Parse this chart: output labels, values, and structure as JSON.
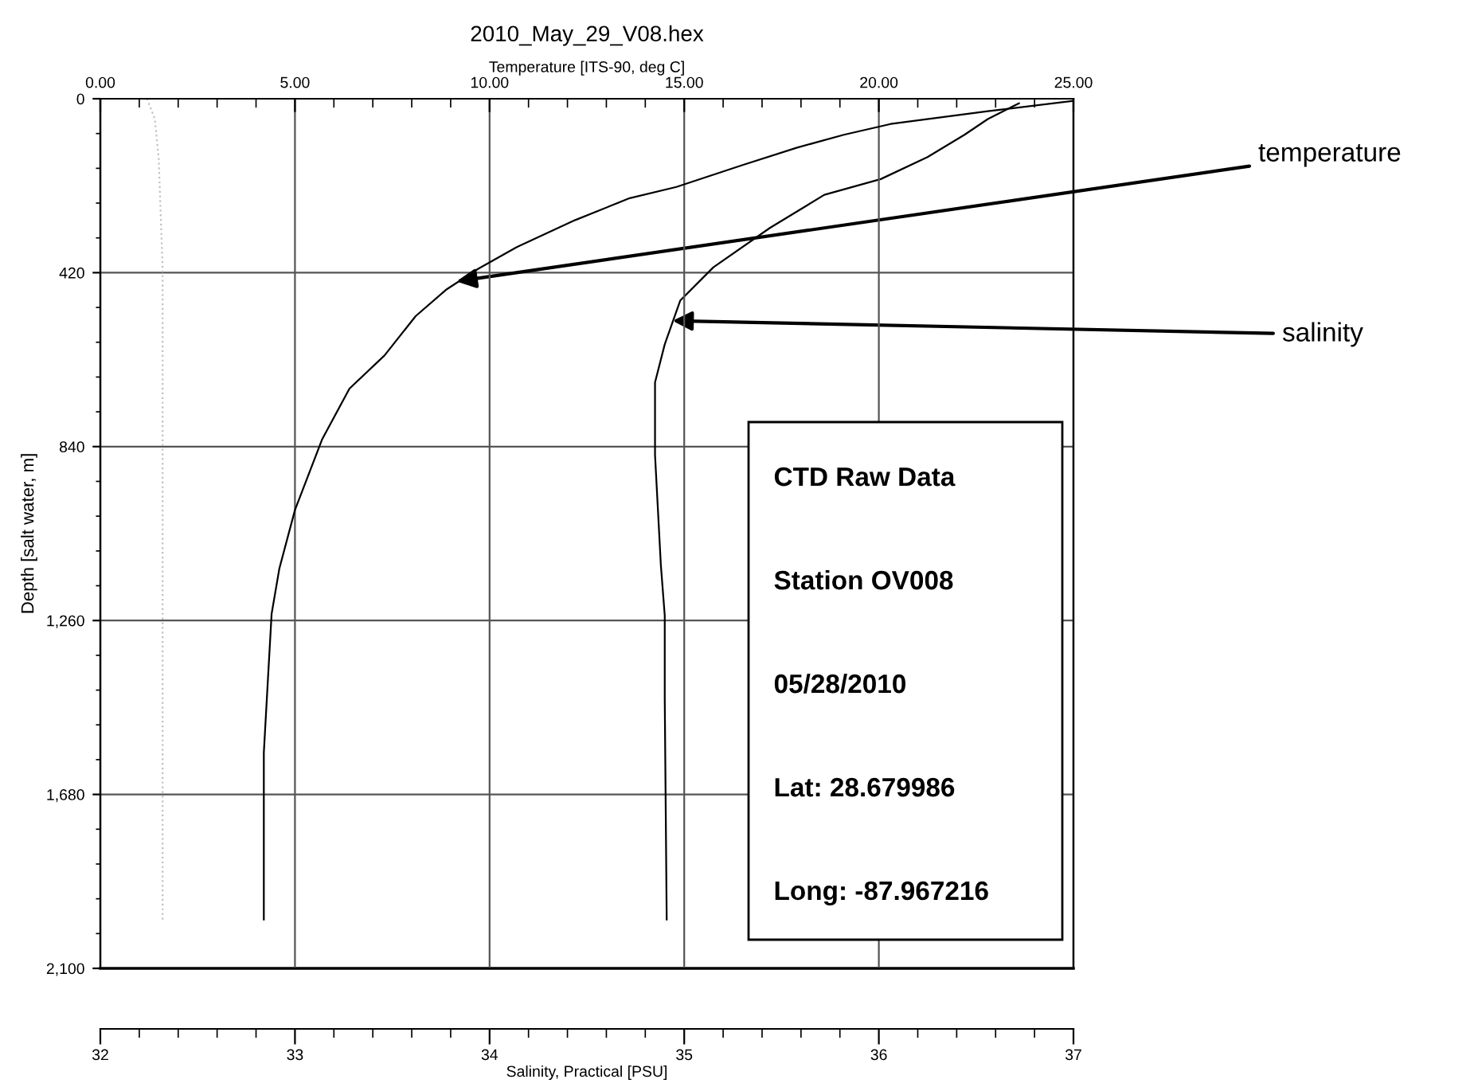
{
  "chart_data": {
    "type": "line",
    "title": "2010_May_29_V08.hex",
    "x2label": "Temperature [ITS-90, deg C]",
    "xlabel": "Salinity, Practical [PSU]",
    "ylabel": "Depth [salt water, m]",
    "series": [
      {
        "name": null,
        "axis": "x2",
        "color": "#000000",
        "x": [
          25.0,
          22.8,
          20.3,
          19.1,
          17.9,
          16.5,
          14.8,
          13.6,
          12.2,
          10.7,
          9.7,
          8.9,
          8.1,
          7.3,
          6.4,
          5.7,
          5.0,
          4.6,
          4.4,
          4.3,
          4.2,
          4.2
        ],
        "values": [
          5,
          30,
          61,
          87,
          118,
          160,
          213,
          240,
          293,
          358,
          411,
          460,
          525,
          620,
          700,
          822,
          993,
          1134,
          1244,
          1411,
          1579,
          1982
        ]
      },
      {
        "name": null,
        "color": "#000000",
        "x": [
          36.72,
          36.56,
          36.44,
          36.25,
          36.01,
          35.72,
          35.44,
          35.15,
          34.98,
          34.9,
          34.85,
          34.85,
          34.88,
          34.9,
          34.9,
          34.91
        ],
        "values": [
          11,
          49,
          87,
          141,
          194,
          232,
          312,
          407,
          487,
          593,
          685,
          860,
          1126,
          1248,
          1449,
          1982
        ]
      },
      {
        "name": null,
        "axis": "x2",
        "color": "#c0c0c0",
        "line_style": "dotted",
        "x": [
          1.2,
          1.4,
          1.5,
          1.6,
          1.6,
          1.6
        ],
        "values": [
          0,
          49,
          145,
          411,
          1286,
          1982
        ]
      }
    ],
    "xlim": [
      32,
      37
    ],
    "xticks": [
      32,
      33,
      34,
      35,
      36,
      37
    ],
    "x2lim": [
      0,
      25
    ],
    "x2ticks": [
      {
        "value": 0,
        "label": "0.00"
      },
      {
        "value": 5,
        "label": "5.00"
      },
      {
        "value": 10,
        "label": "10.00"
      },
      {
        "value": 15,
        "label": "15.00"
      },
      {
        "value": 20,
        "label": "20.00"
      },
      {
        "value": 25,
        "label": "25.00"
      }
    ],
    "ylim": [
      2100,
      0
    ],
    "yticks": [
      {
        "value": 0,
        "label": "0"
      },
      {
        "value": 420,
        "label": "420"
      },
      {
        "value": 840,
        "label": "840"
      },
      {
        "value": 1260,
        "label": "1,260"
      },
      {
        "value": 1680,
        "label": "1,680"
      },
      {
        "value": 2100,
        "label": "2,100"
      }
    ],
    "grid": true,
    "legend": false,
    "annotations": [
      {
        "text": "temperature",
        "x": 33.83,
        "y": 441
      },
      {
        "text": "salinity",
        "x": 34.94,
        "y": 536
      },
      "CTD Raw Data",
      "Station OV008",
      "05/28/2010",
      "Lat: 28.679986",
      "Long: -87.967216"
    ]
  }
}
